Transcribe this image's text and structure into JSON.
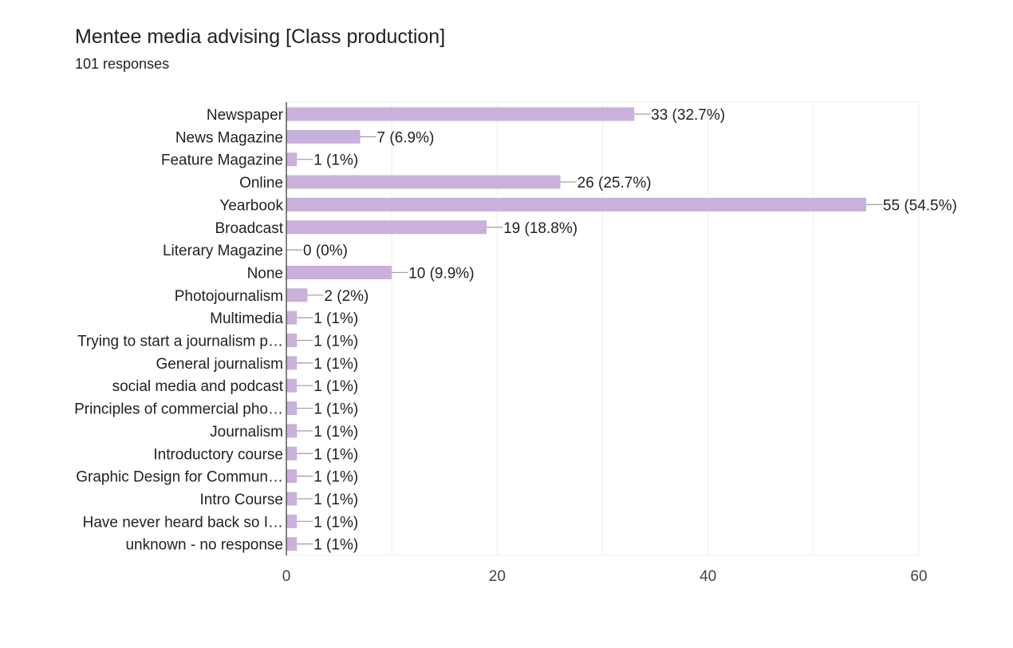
{
  "header": {
    "title": "Mentee media advising [Class production]",
    "subtitle": "101 responses"
  },
  "chart_data": {
    "type": "bar",
    "orientation": "horizontal",
    "title": "Mentee media advising [Class production]",
    "subtitle": "101 responses",
    "xlabel": "",
    "ylabel": "",
    "xlim": [
      0,
      60
    ],
    "ticks": [
      0,
      20,
      40,
      60
    ],
    "grid": true,
    "legend": "none",
    "bar_color": "#c9b1dc",
    "categories": [
      "Newspaper",
      "News Magazine",
      "Feature Magazine",
      "Online",
      "Yearbook",
      "Broadcast",
      "Literary Magazine",
      "None",
      "Photojournalism",
      "Multimedia",
      "Trying to start a journalism p…",
      "General journalism",
      "social media and podcast",
      "Principles of commercial pho…",
      "Journalism",
      "Introductory course",
      "Graphic Design for Commun…",
      "Intro Course",
      "Have never heard back so I…",
      "unknown - no response"
    ],
    "values": [
      33,
      7,
      1,
      26,
      55,
      19,
      0,
      10,
      2,
      1,
      1,
      1,
      1,
      1,
      1,
      1,
      1,
      1,
      1,
      1
    ],
    "data_labels": [
      "33 (32.7%)",
      "7 (6.9%)",
      "1 (1%)",
      "26 (25.7%)",
      "55 (54.5%)",
      "19 (18.8%)",
      "0 (0%)",
      "10 (9.9%)",
      "2 (2%)",
      "1 (1%)",
      "1 (1%)",
      "1 (1%)",
      "1 (1%)",
      "1 (1%)",
      "1 (1%)",
      "1 (1%)",
      "1 (1%)",
      "1 (1%)",
      "1 (1%)",
      "1 (1%)"
    ]
  }
}
